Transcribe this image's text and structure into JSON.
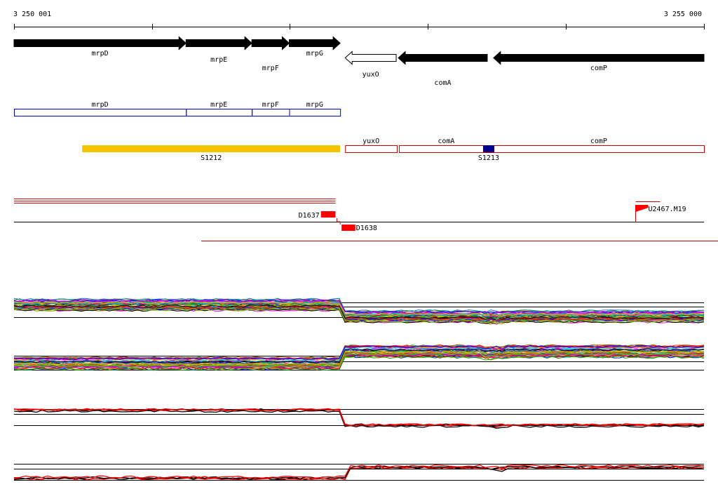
{
  "browser": {
    "coord_start_label": "3 250 001",
    "coord_end_label": "3 255 000",
    "ruler": {
      "start": 3250001,
      "end": 3255000,
      "tick_step": 1000
    }
  },
  "genes": [
    {
      "name": "mrpD",
      "start": 3250001,
      "end": 3251247,
      "strand": "+",
      "fill": "#000000"
    },
    {
      "name": "mrpE",
      "start": 3251247,
      "end": 3251724,
      "strand": "+",
      "fill": "#000000"
    },
    {
      "name": "mrpF",
      "start": 3251724,
      "end": 3251995,
      "strand": "+",
      "fill": "#000000"
    },
    {
      "name": "mrpG",
      "start": 3251995,
      "end": 3252364,
      "strand": "+",
      "fill": "#000000"
    },
    {
      "name": "yuxO",
      "start": 3252400,
      "end": 3252770,
      "strand": "-",
      "fill": "#ffffff"
    },
    {
      "name": "comA",
      "start": 3252785,
      "end": 3253430,
      "strand": "-",
      "fill": "#000000"
    },
    {
      "name": "comP",
      "start": 3253475,
      "end": 3255000,
      "strand": "-",
      "fill": "#000000"
    }
  ],
  "cds_blocks": [
    {
      "name": "mrpD",
      "start": 3250001,
      "end": 3251247
    },
    {
      "name": "mrpE",
      "start": 3251247,
      "end": 3251724
    },
    {
      "name": "mrpF",
      "start": 3251724,
      "end": 3251995
    },
    {
      "name": "mrpG",
      "start": 3251995,
      "end": 3252364
    }
  ],
  "transcripts": [
    {
      "name": "S1212",
      "start": 3250495,
      "end": 3252364,
      "color": "#f5c400",
      "filled": true
    },
    {
      "name": "yuxO",
      "start": 3252400,
      "end": 3252775,
      "color": "#cc0000",
      "filled": false
    },
    {
      "name": "comA",
      "start": 3252790,
      "end": 3253475,
      "color": "#cc0000",
      "filled": false
    },
    {
      "name": "comP",
      "start": 3253475,
      "end": 3255000,
      "color": "#cc0000",
      "filled": false
    }
  ],
  "segment_label": {
    "name": "S1213",
    "pos": 3253440,
    "color": "#00008b"
  },
  "features": [
    {
      "name": "D1637",
      "start": 3252225,
      "end": 3252330,
      "color": "#ff0000"
    },
    {
      "name": "D1638",
      "start": 3252364,
      "end": 3252474,
      "color": "#ff0000"
    }
  ],
  "tss": {
    "name": "U2467.M19",
    "pos": 3254500,
    "color": "#ff0000"
  },
  "expression_panels": [
    {
      "name": "panel-1",
      "type": "multi",
      "level_left": 0.55,
      "level_right": 0.25,
      "shift": "down",
      "step_pos": 3252370
    },
    {
      "name": "panel-2",
      "type": "multi",
      "level_left": 0.3,
      "level_right": 0.6,
      "shift": "up",
      "step_pos": 3252370
    },
    {
      "name": "panel-3",
      "type": "paired",
      "level_left": 0.7,
      "level_right": 0.2,
      "shift": "down",
      "step_pos": 3252370
    },
    {
      "name": "panel-4",
      "type": "paired",
      "level_left": 0.2,
      "level_right": 0.55,
      "shift": "up",
      "step_pos": 3252400
    }
  ]
}
